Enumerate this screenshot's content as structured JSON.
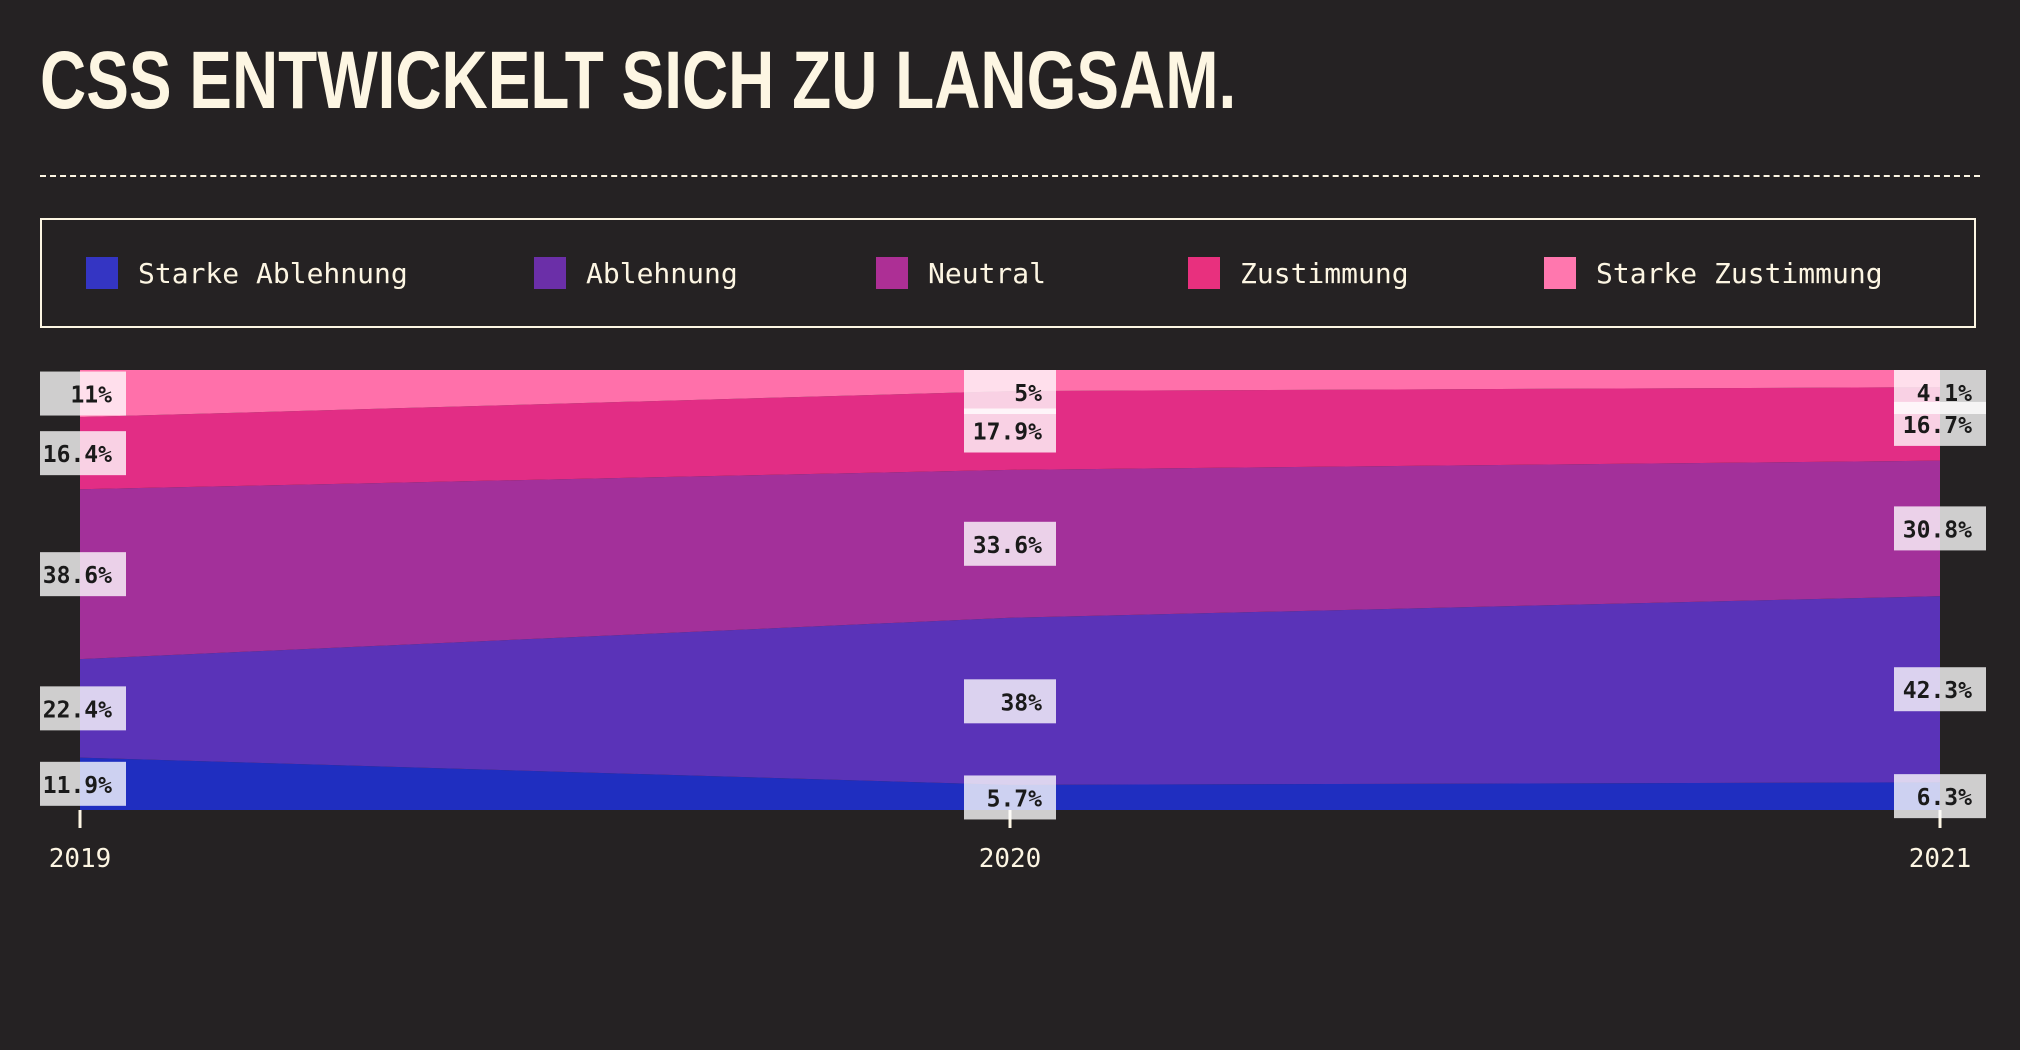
{
  "page": {
    "title": "CSS ENTWICKELT SICH ZU LANGSAM."
  },
  "chart_data": {
    "type": "area",
    "stacked": true,
    "normalized": true,
    "x": [
      "2019",
      "2020",
      "2021"
    ],
    "series": [
      {
        "name": "Starke Ablehnung",
        "values": [
          11.9,
          5.7,
          6.3
        ],
        "labels": [
          "11.9%",
          "5.7%",
          "6.3%"
        ],
        "color": "#1f2ec0"
      },
      {
        "name": "Ablehnung",
        "values": [
          22.4,
          38,
          42.3
        ],
        "labels": [
          "22.4%",
          "38%",
          "42.3%"
        ],
        "color": "#5a33b8"
      },
      {
        "name": "Neutral",
        "values": [
          38.6,
          33.6,
          30.8
        ],
        "labels": [
          "38.6%",
          "33.6%",
          "30.8%"
        ],
        "color": "#a3309a"
      },
      {
        "name": "Zustimmung",
        "values": [
          16.4,
          17.9,
          16.7
        ],
        "labels": [
          "16.4%",
          "17.9%",
          "16.7%"
        ],
        "color": "#e22d85"
      },
      {
        "name": "Starke Zustimmung",
        "values": [
          11,
          5,
          4.1
        ],
        "labels": [
          "11%",
          "5%",
          "4.1%"
        ],
        "color": "#ff70aa"
      }
    ],
    "ylim": [
      0,
      100
    ],
    "legend_position": "top",
    "legend_swatch_colors": [
      "#3435c3",
      "#6b2fa8",
      "#ad2f95",
      "#e8307e",
      "#ff77ae"
    ]
  }
}
